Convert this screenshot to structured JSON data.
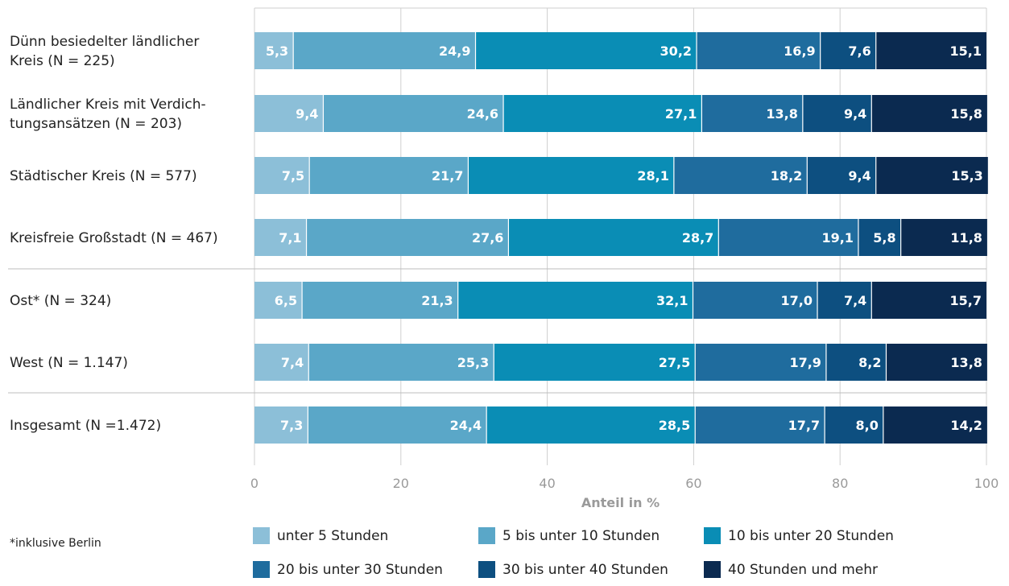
{
  "chart_data": {
    "type": "bar",
    "orientation": "horizontal",
    "stacked": true,
    "xlabel": "Anteil in %",
    "xlim": [
      0,
      100
    ],
    "xticks": [
      0,
      20,
      40,
      60,
      80,
      100
    ],
    "grid": true,
    "legend_position": "bottom",
    "categories": [
      [
        "Dünn besiedelter ländlicher",
        "Kreis (N = 225)"
      ],
      [
        "Ländlicher Kreis mit Verdich-",
        "tungsansätzen (N = 203)"
      ],
      [
        "Städtischer Kreis (N = 577)"
      ],
      [
        "Kreisfreie Großstadt (N = 467)"
      ],
      [
        "Ost* (N = 324)"
      ],
      [
        "West (N = 1.147)"
      ],
      [
        "Insgesamt (N =1.472)"
      ]
    ],
    "series": [
      {
        "name": "unter 5 Stunden",
        "color": "#8cbfd8",
        "values": [
          5.3,
          9.4,
          7.5,
          7.1,
          6.5,
          7.4,
          7.3
        ],
        "labels": [
          "5,3",
          "9,4",
          "7,5",
          "7,1",
          "6,5",
          "7,4",
          "7,3"
        ]
      },
      {
        "name": "5 bis unter 10 Stunden",
        "color": "#5aa7c8",
        "values": [
          24.9,
          24.6,
          21.7,
          27.6,
          21.3,
          25.3,
          24.4
        ],
        "labels": [
          "24,9",
          "24,6",
          "21,7",
          "27,6",
          "21,3",
          "25,3",
          "24,4"
        ]
      },
      {
        "name": "10 bis unter 20 Stunden",
        "color": "#0a8db5",
        "values": [
          30.2,
          27.1,
          28.1,
          28.7,
          32.1,
          27.5,
          28.5
        ],
        "labels": [
          "30,2",
          "27,1",
          "28,1",
          "28,7",
          "32,1",
          "27,5",
          "28,5"
        ]
      },
      {
        "name": "20 bis unter 30 Stunden",
        "color": "#1f6c9e",
        "values": [
          16.9,
          13.8,
          18.2,
          19.1,
          17.0,
          17.9,
          17.7
        ],
        "labels": [
          "16,9",
          "13,8",
          "18,2",
          "19,1",
          "17,0",
          "17,9",
          "17,7"
        ]
      },
      {
        "name": "30 bis unter 40 Stunden",
        "color": "#0d4f80",
        "values": [
          7.6,
          9.4,
          9.4,
          5.8,
          7.4,
          8.2,
          8.0
        ],
        "labels": [
          "7,6",
          "9,4",
          "9,4",
          "5,8",
          "7,4",
          "8,2",
          "8,0"
        ]
      },
      {
        "name": "40 Stunden und mehr",
        "color": "#0b2a50",
        "values": [
          15.1,
          15.8,
          15.3,
          11.8,
          15.7,
          13.8,
          14.2
        ],
        "labels": [
          "15,1",
          "15,8",
          "15,3",
          "11,8",
          "15,7",
          "13,8",
          "14,2"
        ]
      }
    ],
    "group_separators_after": [
      3,
      5
    ]
  },
  "footnote": "*inklusive Berlin"
}
